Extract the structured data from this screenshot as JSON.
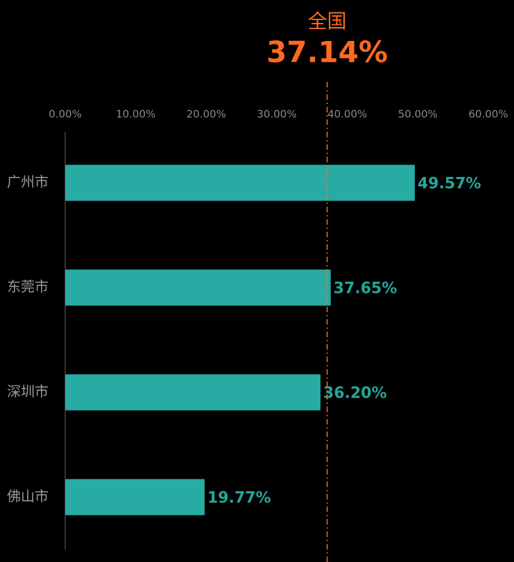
{
  "chart_data": {
    "type": "bar",
    "orientation": "horizontal",
    "categories": [
      "广州市",
      "东莞市",
      "深圳市",
      "佛山市"
    ],
    "values": [
      49.57,
      37.65,
      36.2,
      19.77
    ],
    "value_labels": [
      "49.57%",
      "37.65%",
      "36.20%",
      "19.77%"
    ],
    "color": "#27aba3",
    "xlim": [
      0,
      60
    ],
    "xticks": [
      {
        "value": 0,
        "label": "0.00%"
      },
      {
        "value": 10,
        "label": "10.00%"
      },
      {
        "value": 20,
        "label": "20.00%"
      },
      {
        "value": 30,
        "label": "30.00%"
      },
      {
        "value": 40,
        "label": "40.00%"
      },
      {
        "value": 50,
        "label": "50.00%"
      },
      {
        "value": 60,
        "label": "60.00%"
      }
    ],
    "reference": {
      "name": "全国",
      "value": 37.14,
      "value_label": "37.14%",
      "color": "#ff6a1f"
    }
  }
}
